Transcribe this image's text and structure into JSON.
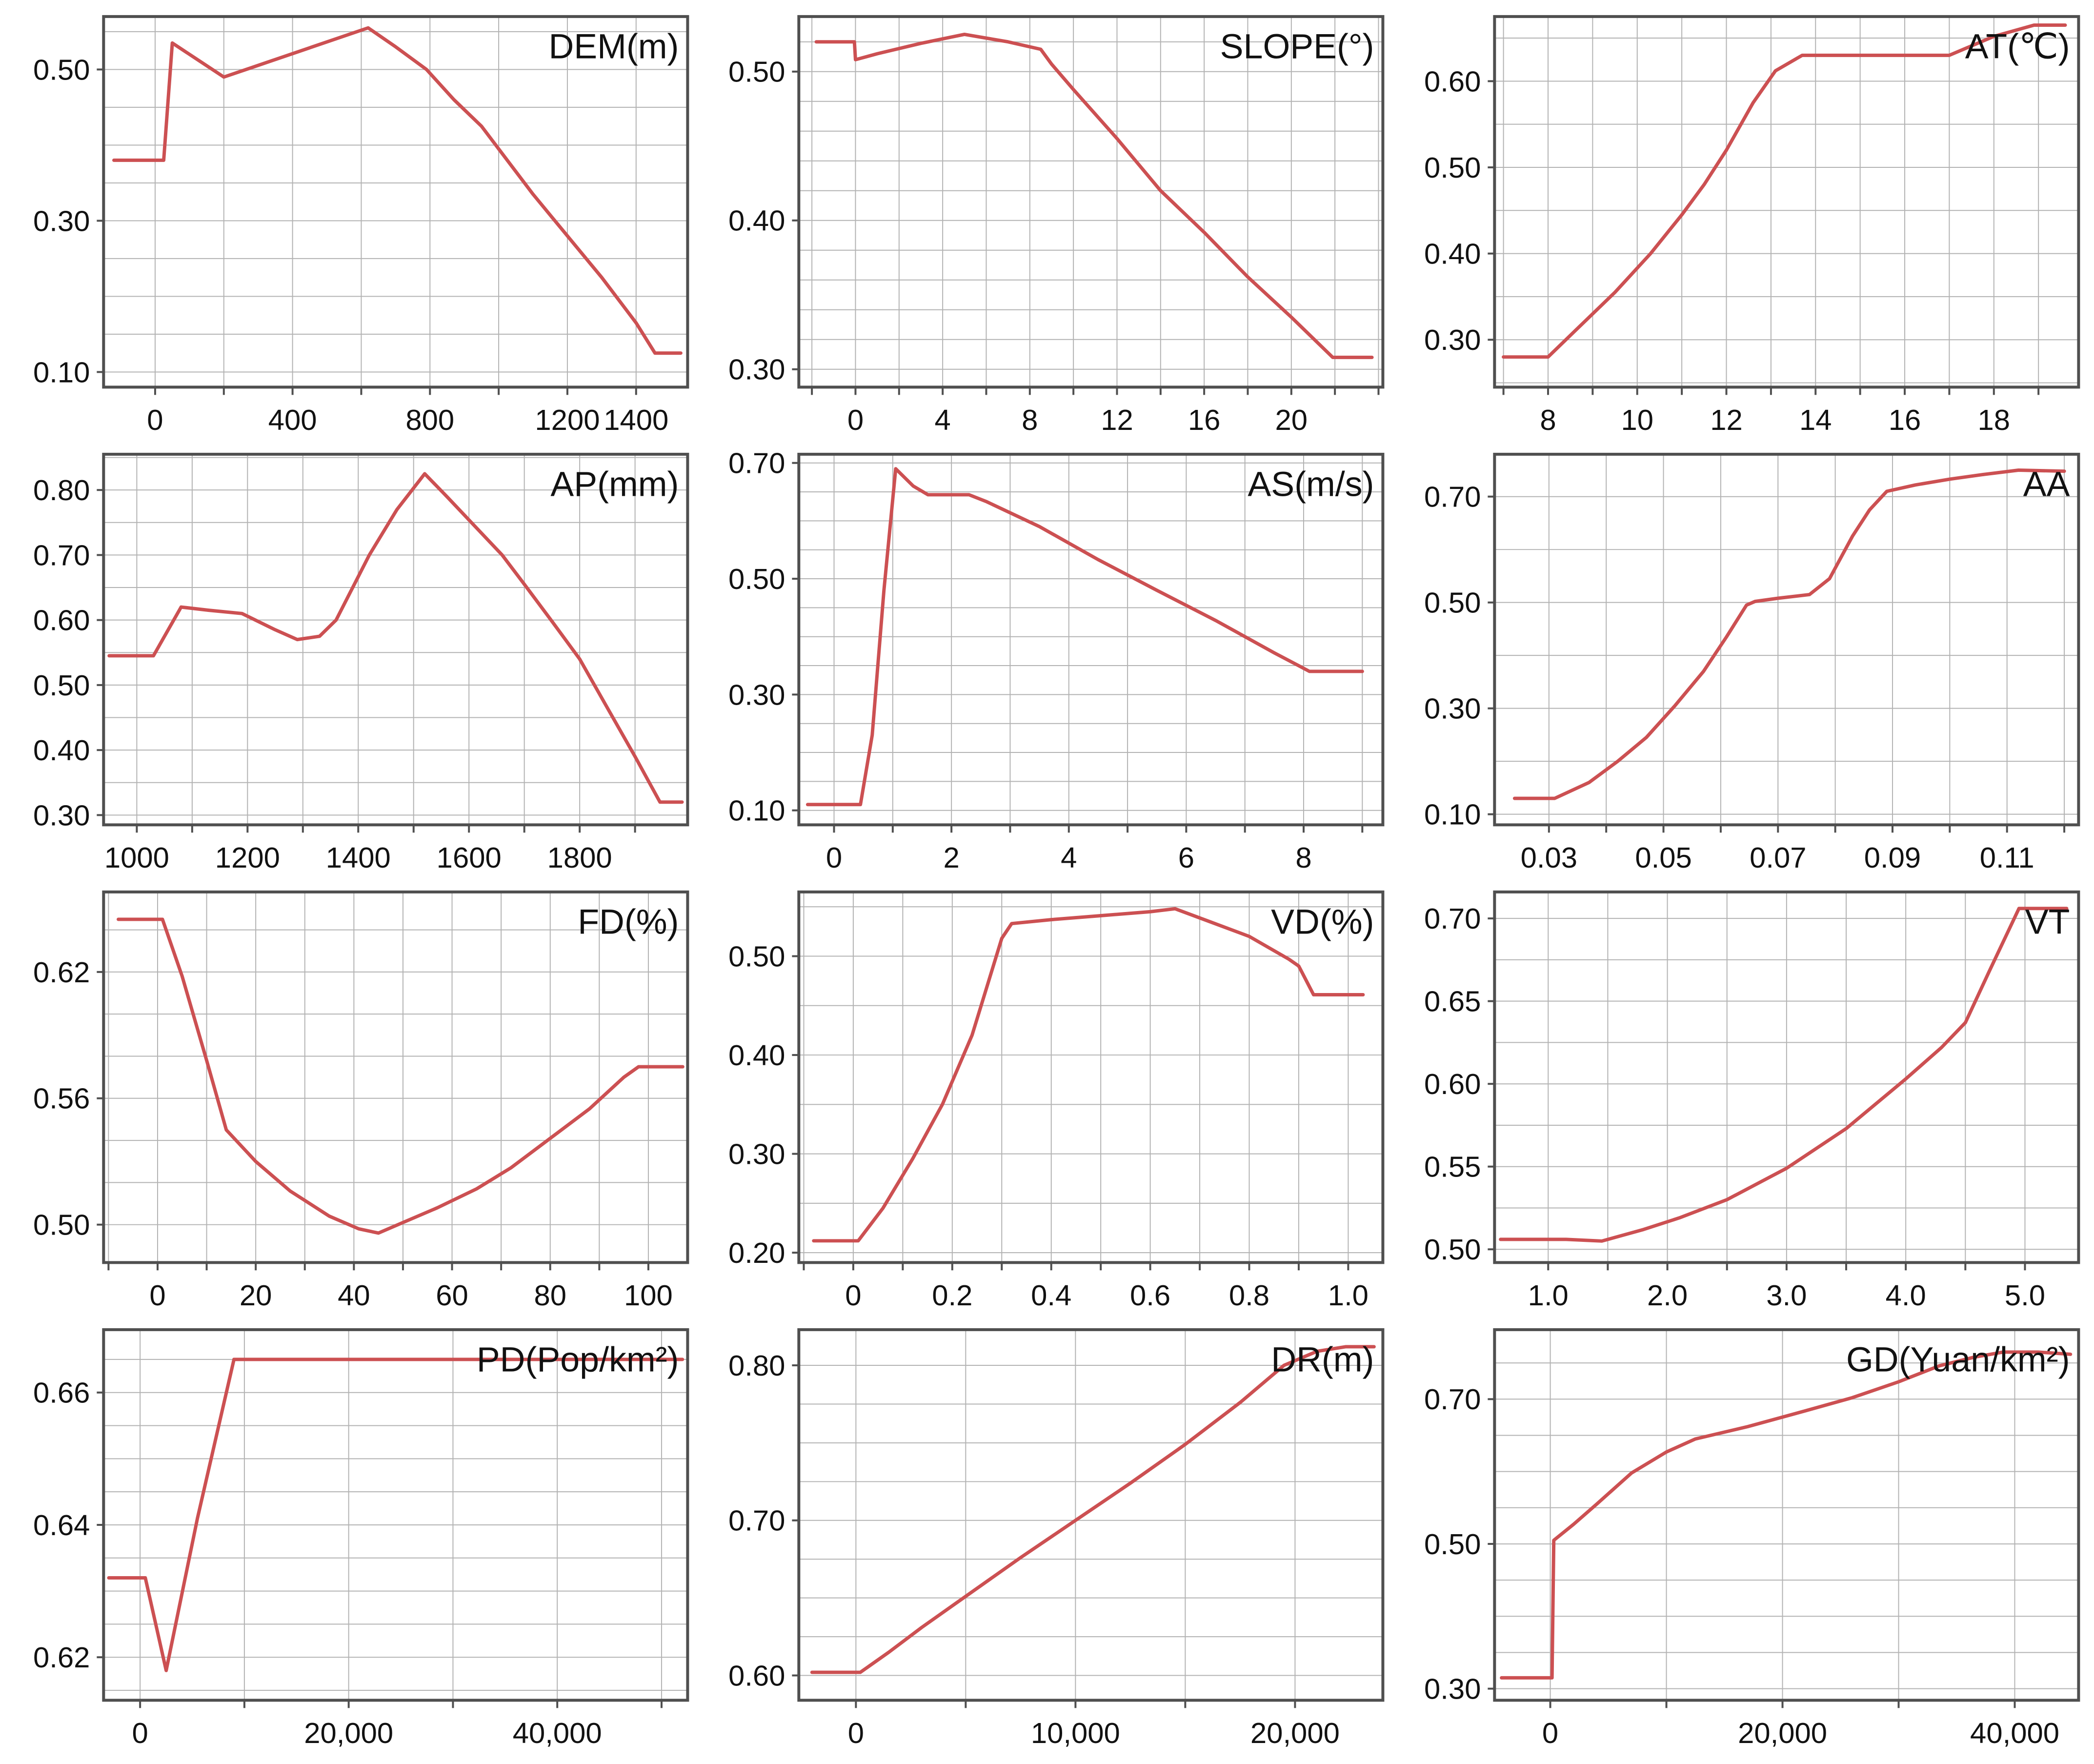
{
  "figure": {
    "description_title_labels": [
      "DEM(m)",
      "SLOPE(°)",
      "AT(℃)",
      "AP(mm)",
      "AS(m/s)",
      "AA",
      "FD(%)",
      "VD(%)",
      "VT",
      "PD(Pop/km²)",
      "DR(m)",
      "GD(Yuan/km²)"
    ],
    "colors": {
      "line": "#cc5052",
      "grid": "#b3b3b3",
      "axis": "#4f4f4f",
      "text": "#111111",
      "background": "#ffffff"
    }
  },
  "chart_data": [
    {
      "id": "dem",
      "type": "line",
      "title": "DEM(m)",
      "xlim": [
        -150,
        1550
      ],
      "ylim": [
        0.08,
        0.57
      ],
      "xgrid_step": 200,
      "xgrid_anchor": 0,
      "ygrid_step": 0.05,
      "ygrid_anchor": 0.1,
      "xticks": [
        {
          "v": 0,
          "label": "0"
        },
        {
          "v": 400,
          "label": "400"
        },
        {
          "v": 800,
          "label": "800"
        },
        {
          "v": 1200,
          "label": "1200"
        },
        {
          "v": 1400,
          "label": "1400"
        }
      ],
      "yticks": [
        {
          "v": 0.1,
          "label": "0.10"
        },
        {
          "v": 0.3,
          "label": "0.30"
        },
        {
          "v": 0.5,
          "label": "0.50"
        }
      ],
      "x": [
        -120,
        25,
        50,
        200,
        620,
        700,
        790,
        870,
        950,
        1000,
        1100,
        1200,
        1300,
        1400,
        1455,
        1530
      ],
      "y": [
        0.38,
        0.38,
        0.535,
        0.49,
        0.555,
        0.53,
        0.5,
        0.46,
        0.425,
        0.395,
        0.335,
        0.28,
        0.225,
        0.165,
        0.125,
        0.125
      ]
    },
    {
      "id": "slope",
      "type": "line",
      "title": "SLOPE(°)",
      "xlim": [
        -2.6,
        24.2
      ],
      "ylim": [
        0.288,
        0.537
      ],
      "xgrid_step": 2,
      "xgrid_anchor": 0,
      "ygrid_step": 0.02,
      "ygrid_anchor": 0.3,
      "xticks": [
        {
          "v": 0,
          "label": "0"
        },
        {
          "v": 4,
          "label": "4"
        },
        {
          "v": 8,
          "label": "8"
        },
        {
          "v": 12,
          "label": "12"
        },
        {
          "v": 16,
          "label": "16"
        },
        {
          "v": 20,
          "label": "20"
        }
      ],
      "yticks": [
        {
          "v": 0.3,
          "label": "0.30"
        },
        {
          "v": 0.4,
          "label": "0.40"
        },
        {
          "v": 0.5,
          "label": "0.50"
        }
      ],
      "x": [
        -1.8,
        -0.05,
        0.0,
        1.0,
        3.0,
        5.0,
        7.0,
        8.5,
        9.0,
        10,
        12,
        14,
        16,
        18,
        20,
        21.9,
        23.7
      ],
      "y": [
        0.52,
        0.52,
        0.508,
        0.512,
        0.519,
        0.525,
        0.52,
        0.515,
        0.505,
        0.488,
        0.455,
        0.42,
        0.392,
        0.362,
        0.335,
        0.308,
        0.308
      ]
    },
    {
      "id": "at",
      "type": "line",
      "title": "AT(℃)",
      "xlim": [
        6.8,
        19.9
      ],
      "ylim": [
        0.245,
        0.675
      ],
      "xgrid_step": 1,
      "xgrid_anchor": 8,
      "ygrid_step": 0.05,
      "ygrid_anchor": 0.3,
      "xticks": [
        {
          "v": 8,
          "label": "8"
        },
        {
          "v": 10,
          "label": "10"
        },
        {
          "v": 12,
          "label": "12"
        },
        {
          "v": 14,
          "label": "14"
        },
        {
          "v": 16,
          "label": "16"
        },
        {
          "v": 18,
          "label": "18"
        }
      ],
      "yticks": [
        {
          "v": 0.3,
          "label": "0.30"
        },
        {
          "v": 0.4,
          "label": "0.40"
        },
        {
          "v": 0.5,
          "label": "0.50"
        },
        {
          "v": 0.6,
          "label": "0.60"
        }
      ],
      "x": [
        7.0,
        8.0,
        8.6,
        9.5,
        10.3,
        11.0,
        11.5,
        12.0,
        12.6,
        13.1,
        13.7,
        17.0,
        18.0,
        18.9,
        19.6
      ],
      "y": [
        0.28,
        0.28,
        0.31,
        0.355,
        0.4,
        0.445,
        0.48,
        0.52,
        0.575,
        0.612,
        0.63,
        0.63,
        0.652,
        0.665,
        0.665
      ]
    },
    {
      "id": "ap",
      "type": "line",
      "title": "AP(mm)",
      "xlim": [
        940,
        1995
      ],
      "ylim": [
        0.285,
        0.855
      ],
      "xgrid_step": 100,
      "xgrid_anchor": 1000,
      "ygrid_step": 0.05,
      "ygrid_anchor": 0.3,
      "xticks": [
        {
          "v": 1000,
          "label": "1000"
        },
        {
          "v": 1200,
          "label": "1200"
        },
        {
          "v": 1400,
          "label": "1400"
        },
        {
          "v": 1600,
          "label": "1600"
        },
        {
          "v": 1800,
          "label": "1800"
        }
      ],
      "yticks": [
        {
          "v": 0.3,
          "label": "0.30"
        },
        {
          "v": 0.4,
          "label": "0.40"
        },
        {
          "v": 0.5,
          "label": "0.50"
        },
        {
          "v": 0.6,
          "label": "0.60"
        },
        {
          "v": 0.7,
          "label": "0.70"
        },
        {
          "v": 0.8,
          "label": "0.80"
        }
      ],
      "x": [
        950,
        1030,
        1080,
        1130,
        1190,
        1250,
        1290,
        1330,
        1360,
        1420,
        1470,
        1520,
        1560,
        1610,
        1660,
        1700,
        1750,
        1800,
        1850,
        1900,
        1945,
        1985
      ],
      "y": [
        0.545,
        0.545,
        0.62,
        0.615,
        0.61,
        0.585,
        0.57,
        0.575,
        0.6,
        0.7,
        0.77,
        0.825,
        0.79,
        0.745,
        0.7,
        0.655,
        0.598,
        0.54,
        0.465,
        0.39,
        0.32,
        0.32
      ]
    },
    {
      "id": "as",
      "type": "line",
      "title": "AS(m/s)",
      "xlim": [
        -0.6,
        9.35
      ],
      "ylim": [
        0.075,
        0.715
      ],
      "xgrid_step": 1,
      "xgrid_anchor": 0,
      "ygrid_step": 0.05,
      "ygrid_anchor": 0.1,
      "xticks": [
        {
          "v": 0,
          "label": "0"
        },
        {
          "v": 2,
          "label": "2"
        },
        {
          "v": 4,
          "label": "4"
        },
        {
          "v": 6,
          "label": "6"
        },
        {
          "v": 8,
          "label": "8"
        }
      ],
      "yticks": [
        {
          "v": 0.1,
          "label": "0.10"
        },
        {
          "v": 0.3,
          "label": "0.30"
        },
        {
          "v": 0.5,
          "label": "0.50"
        },
        {
          "v": 0.7,
          "label": "0.70"
        }
      ],
      "x": [
        -0.45,
        0.45,
        0.65,
        0.85,
        1.05,
        1.35,
        1.6,
        2.3,
        2.6,
        3.5,
        4.5,
        5.5,
        6.5,
        7.5,
        8.1,
        9.0
      ],
      "y": [
        0.11,
        0.11,
        0.23,
        0.48,
        0.69,
        0.66,
        0.645,
        0.645,
        0.633,
        0.59,
        0.533,
        0.48,
        0.428,
        0.372,
        0.34,
        0.34
      ]
    },
    {
      "id": "aa",
      "type": "line",
      "title": "AA",
      "xlim": [
        0.0205,
        0.1225
      ],
      "ylim": [
        0.08,
        0.78
      ],
      "xgrid_step": 0.01,
      "xgrid_anchor": 0.03,
      "ygrid_step": 0.1,
      "ygrid_anchor": 0.1,
      "xticks": [
        {
          "v": 0.03,
          "label": "0.03"
        },
        {
          "v": 0.05,
          "label": "0.05"
        },
        {
          "v": 0.07,
          "label": "0.07"
        },
        {
          "v": 0.09,
          "label": "0.09"
        },
        {
          "v": 0.11,
          "label": "0.11"
        }
      ],
      "yticks": [
        {
          "v": 0.1,
          "label": "0.10"
        },
        {
          "v": 0.3,
          "label": "0.30"
        },
        {
          "v": 0.5,
          "label": "0.50"
        },
        {
          "v": 0.7,
          "label": "0.70"
        }
      ],
      "x": [
        0.024,
        0.031,
        0.037,
        0.042,
        0.047,
        0.052,
        0.057,
        0.061,
        0.0645,
        0.066,
        0.07,
        0.0755,
        0.079,
        0.083,
        0.086,
        0.089,
        0.094,
        0.1,
        0.106,
        0.112,
        0.12
      ],
      "y": [
        0.13,
        0.13,
        0.16,
        0.2,
        0.245,
        0.305,
        0.37,
        0.435,
        0.495,
        0.502,
        0.508,
        0.515,
        0.545,
        0.625,
        0.675,
        0.71,
        0.722,
        0.733,
        0.742,
        0.75,
        0.748
      ]
    },
    {
      "id": "fd",
      "type": "line",
      "title": "FD(%)",
      "xlim": [
        -11,
        108
      ],
      "ylim": [
        0.482,
        0.658
      ],
      "xgrid_step": 10,
      "xgrid_anchor": 0,
      "ygrid_step": 0.02,
      "ygrid_anchor": 0.5,
      "xticks": [
        {
          "v": 0,
          "label": "0"
        },
        {
          "v": 20,
          "label": "20"
        },
        {
          "v": 40,
          "label": "40"
        },
        {
          "v": 60,
          "label": "60"
        },
        {
          "v": 80,
          "label": "80"
        },
        {
          "v": 100,
          "label": "100"
        }
      ],
      "yticks": [
        {
          "v": 0.5,
          "label": "0.50"
        },
        {
          "v": 0.56,
          "label": "0.56"
        },
        {
          "v": 0.62,
          "label": "0.62"
        }
      ],
      "x": [
        -8,
        1,
        5,
        10,
        14,
        20,
        27,
        35,
        41,
        45,
        50,
        57,
        65,
        72,
        80,
        88,
        95,
        98,
        107
      ],
      "y": [
        0.645,
        0.645,
        0.618,
        0.578,
        0.545,
        0.53,
        0.516,
        0.504,
        0.498,
        0.496,
        0.501,
        0.508,
        0.517,
        0.527,
        0.541,
        0.555,
        0.57,
        0.575,
        0.575
      ]
    },
    {
      "id": "vd",
      "type": "line",
      "title": "VD(%)",
      "xlim": [
        -0.11,
        1.07
      ],
      "ylim": [
        0.19,
        0.565
      ],
      "xgrid_step": 0.1,
      "xgrid_anchor": 0,
      "ygrid_step": 0.05,
      "ygrid_anchor": 0.2,
      "xticks": [
        {
          "v": 0,
          "label": "0"
        },
        {
          "v": 0.2,
          "label": "0.2"
        },
        {
          "v": 0.4,
          "label": "0.4"
        },
        {
          "v": 0.6,
          "label": "0.6"
        },
        {
          "v": 0.8,
          "label": "0.8"
        },
        {
          "v": 1.0,
          "label": "1.0"
        }
      ],
      "yticks": [
        {
          "v": 0.2,
          "label": "0.20"
        },
        {
          "v": 0.3,
          "label": "0.30"
        },
        {
          "v": 0.4,
          "label": "0.40"
        },
        {
          "v": 0.5,
          "label": "0.50"
        }
      ],
      "x": [
        -0.08,
        0.01,
        0.06,
        0.12,
        0.18,
        0.24,
        0.3,
        0.32,
        0.4,
        0.5,
        0.6,
        0.65,
        0.72,
        0.8,
        0.88,
        0.9,
        0.93,
        1.03
      ],
      "y": [
        0.212,
        0.212,
        0.245,
        0.295,
        0.35,
        0.42,
        0.518,
        0.533,
        0.537,
        0.541,
        0.545,
        0.548,
        0.535,
        0.52,
        0.497,
        0.49,
        0.461,
        0.461
      ]
    },
    {
      "id": "vt",
      "type": "line",
      "title": "VT",
      "xlim": [
        0.55,
        5.45
      ],
      "ylim": [
        0.492,
        0.716
      ],
      "xgrid_step": 0.5,
      "xgrid_anchor": 1.0,
      "ygrid_step": 0.025,
      "ygrid_anchor": 0.5,
      "xticks": [
        {
          "v": 1.0,
          "label": "1.0"
        },
        {
          "v": 2.0,
          "label": "2.0"
        },
        {
          "v": 3.0,
          "label": "3.0"
        },
        {
          "v": 4.0,
          "label": "4.0"
        },
        {
          "v": 5.0,
          "label": "5.0"
        }
      ],
      "yticks": [
        {
          "v": 0.5,
          "label": "0.50"
        },
        {
          "v": 0.55,
          "label": "0.55"
        },
        {
          "v": 0.6,
          "label": "0.60"
        },
        {
          "v": 0.65,
          "label": "0.65"
        },
        {
          "v": 0.7,
          "label": "0.70"
        }
      ],
      "x": [
        0.6,
        1.15,
        1.45,
        1.8,
        2.1,
        2.5,
        3.0,
        3.5,
        4.0,
        4.3,
        4.5,
        4.7,
        4.95,
        5.35
      ],
      "y": [
        0.506,
        0.506,
        0.505,
        0.512,
        0.519,
        0.53,
        0.549,
        0.573,
        0.603,
        0.622,
        0.637,
        0.668,
        0.706,
        0.706
      ]
    },
    {
      "id": "pd",
      "type": "line",
      "title": "PD(Pop/km²)",
      "xlim": [
        -3500,
        52500
      ],
      "ylim": [
        0.6135,
        0.6695
      ],
      "xgrid_step": 10000,
      "xgrid_anchor": 0,
      "ygrid_step": 0.005,
      "ygrid_anchor": 0.62,
      "xticks": [
        {
          "v": 0,
          "label": "0"
        },
        {
          "v": 20000,
          "label": "20,000"
        },
        {
          "v": 40000,
          "label": "40,000"
        }
      ],
      "yticks": [
        {
          "v": 0.62,
          "label": "0.62"
        },
        {
          "v": 0.64,
          "label": "0.64"
        },
        {
          "v": 0.66,
          "label": "0.66"
        }
      ],
      "x": [
        -3000,
        500,
        2500,
        5500,
        9000,
        52000
      ],
      "y": [
        0.632,
        0.632,
        0.618,
        0.641,
        0.665,
        0.665
      ]
    },
    {
      "id": "dr",
      "type": "line",
      "title": "DR(m)",
      "xlim": [
        -2600,
        24000
      ],
      "ylim": [
        0.584,
        0.823
      ],
      "xgrid_step": 5000,
      "xgrid_anchor": 0,
      "ygrid_step": 0.025,
      "ygrid_anchor": 0.6,
      "xticks": [
        {
          "v": 0,
          "label": "0"
        },
        {
          "v": 10000,
          "label": "10,000"
        },
        {
          "v": 20000,
          "label": "20,000"
        }
      ],
      "yticks": [
        {
          "v": 0.6,
          "label": "0.60"
        },
        {
          "v": 0.7,
          "label": "0.70"
        },
        {
          "v": 0.8,
          "label": "0.80"
        }
      ],
      "x": [
        -2000,
        200,
        1500,
        3000,
        4600,
        5300,
        7500,
        10000,
        12500,
        15000,
        17500,
        19500,
        21000,
        22300,
        23600
      ],
      "y": [
        0.602,
        0.602,
        0.615,
        0.631,
        0.647,
        0.654,
        0.676,
        0.7,
        0.724,
        0.749,
        0.776,
        0.8,
        0.809,
        0.812,
        0.812
      ]
    },
    {
      "id": "gd",
      "type": "line",
      "title": "GD(Yuan/km²)",
      "xlim": [
        -4800,
        45500
      ],
      "ylim": [
        0.284,
        0.796
      ],
      "xgrid_step": 10000,
      "xgrid_anchor": 0,
      "ygrid_step": 0.05,
      "ygrid_anchor": 0.3,
      "xticks": [
        {
          "v": 0,
          "label": "0"
        },
        {
          "v": 20000,
          "label": "20,000"
        },
        {
          "v": 40000,
          "label": "40,000"
        }
      ],
      "yticks": [
        {
          "v": 0.3,
          "label": "0.30"
        },
        {
          "v": 0.5,
          "label": "0.50"
        },
        {
          "v": 0.7,
          "label": "0.70"
        }
      ],
      "x": [
        -4200,
        150,
        300,
        2000,
        4000,
        7000,
        10000,
        12500,
        17000,
        22000,
        26000,
        30000,
        33500,
        36500,
        39000,
        42000,
        44800
      ],
      "y": [
        0.315,
        0.315,
        0.505,
        0.527,
        0.555,
        0.598,
        0.627,
        0.645,
        0.662,
        0.684,
        0.702,
        0.724,
        0.746,
        0.758,
        0.765,
        0.765,
        0.762
      ]
    }
  ]
}
